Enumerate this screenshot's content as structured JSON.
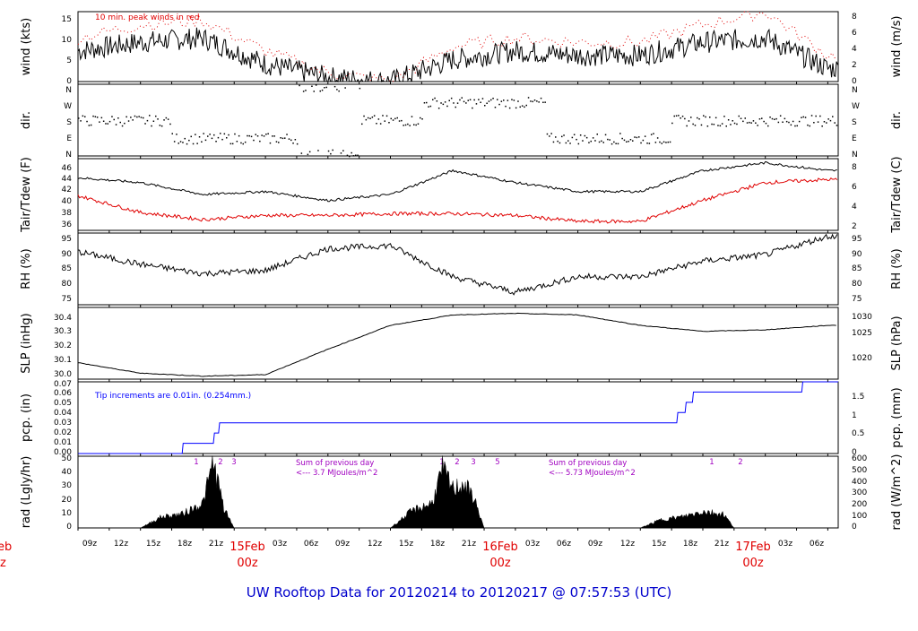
{
  "colors": {
    "axis": "#000000",
    "red": "#e00000",
    "blue": "#0000ff",
    "purple": "#a000c0",
    "title": "#0000cc"
  },
  "panels": [
    {
      "id": "wind",
      "ylabel_left": "wind (kts)",
      "ylabel_right": "wind (m/s)",
      "yticks_left": [
        "0",
        "5",
        "10",
        "15"
      ],
      "yticks_right": [
        "0",
        "2",
        "4",
        "6",
        "8"
      ],
      "annotation": "10 min. peak winds in red"
    },
    {
      "id": "dir",
      "ylabel_left": "dir.",
      "ylabel_right": "dir.",
      "yticks_left": [
        "N",
        "W",
        "S",
        "E",
        "N"
      ],
      "yticks_right": [
        "N",
        "W",
        "S",
        "E",
        "N"
      ]
    },
    {
      "id": "temp",
      "ylabel_left": "Tair/Tdew (F)",
      "ylabel_right": "Tair/Tdew (C)",
      "yticks_left": [
        "36",
        "38",
        "40",
        "42",
        "44",
        "46"
      ],
      "yticks_right": [
        "2",
        "4",
        "6",
        "8"
      ]
    },
    {
      "id": "rh",
      "ylabel_left": "RH (%)",
      "ylabel_right": "RH (%)",
      "yticks_left": [
        "75",
        "80",
        "85",
        "90",
        "95"
      ],
      "yticks_right": [
        "75",
        "80",
        "85",
        "90",
        "95"
      ]
    },
    {
      "id": "slp",
      "ylabel_left": "SLP (inHg)",
      "ylabel_right": "SLP (hPa)",
      "yticks_left": [
        "30.0",
        "30.1",
        "30.2",
        "30.3",
        "30.4"
      ],
      "yticks_right": [
        "1020",
        "1025",
        "1030"
      ]
    },
    {
      "id": "pcp",
      "ylabel_left": "pcp. (in)",
      "ylabel_right": "pcp. (mm)",
      "yticks_left": [
        "0.00",
        "0.01",
        "0.02",
        "0.03",
        "0.04",
        "0.05",
        "0.06",
        "0.07"
      ],
      "yticks_right": [
        "0",
        "0.5",
        "1",
        "1.5"
      ],
      "annotation": "Tip increments are 0.01in. (0.254mm.)"
    },
    {
      "id": "rad",
      "ylabel_left": "rad (Lgly/hr)",
      "ylabel_right": "rad (W/m^2)",
      "yticks_left": [
        "0",
        "10",
        "20",
        "30",
        "40",
        "50"
      ],
      "yticks_right": [
        "0",
        "100",
        "200",
        "300",
        "400",
        "500",
        "600"
      ],
      "notes": [
        {
          "line1": "Sum of previous day",
          "line2": "<--- 3.7 MJoules/m^2"
        },
        {
          "line1": "Sum of previous day",
          "line2": "<--- 5.73 MJoules/m^2"
        }
      ],
      "markers": [
        "1",
        "2",
        "3",
        "1",
        "2",
        "3",
        "5",
        "1",
        "2"
      ]
    }
  ],
  "x_axis": {
    "hour_labels": [
      "09z",
      "12z",
      "15z",
      "18z",
      "21z",
      "03z",
      "06z",
      "09z",
      "12z",
      "15z",
      "18z",
      "21z",
      "03z",
      "06z",
      "09z",
      "12z",
      "15z",
      "18z",
      "21z",
      "03z",
      "06z"
    ],
    "day_labels": [
      {
        "date": "15Feb",
        "hour": "00z"
      },
      {
        "date": "16Feb",
        "hour": "00z"
      },
      {
        "date": "17Feb",
        "hour": "00z"
      }
    ],
    "left_edge_date": "eb",
    "left_edge_hour": "z"
  },
  "title": "UW Rooftop Data for 20120214  to  20120217 @ 07:57:53  (UTC)",
  "chart_data": [
    {
      "type": "line",
      "title": "",
      "ylabel": "wind (kts)",
      "ylim": [
        0,
        16
      ],
      "x_hours_from_09z": [
        0,
        6,
        12,
        18,
        24,
        30,
        36,
        42,
        48,
        54,
        60,
        66,
        72
      ],
      "series": [
        {
          "name": "wind (kts)",
          "values": [
            7,
            9,
            10,
            4,
            1,
            0,
            5,
            7,
            6,
            6,
            9,
            10,
            3
          ]
        },
        {
          "name": "10 min. peak winds",
          "values": [
            10,
            13,
            14,
            7,
            2,
            0,
            8,
            10,
            9,
            9,
            13,
            16,
            6
          ]
        }
      ]
    },
    {
      "type": "scatter",
      "ylabel": "dir.",
      "y_categories": [
        "N",
        "E",
        "S",
        "W",
        "N"
      ],
      "x_hours_from_09z": [
        0,
        6,
        12,
        18,
        24,
        30,
        36,
        42,
        48,
        54,
        60,
        66,
        72
      ],
      "series": [
        {
          "name": "dir.",
          "values": [
            "S",
            "S",
            "E",
            "E",
            "N",
            "S",
            "W",
            "W",
            "E",
            "E",
            "S",
            "S",
            "S"
          ]
        }
      ]
    },
    {
      "type": "line",
      "ylabel": "Tair/Tdew (F)",
      "ylim": [
        35,
        47
      ],
      "x_hours_from_09z": [
        0,
        6,
        12,
        18,
        24,
        30,
        36,
        42,
        48,
        54,
        60,
        66,
        72
      ],
      "series": [
        {
          "name": "Tair",
          "values": [
            43.8,
            43,
            41,
            41.5,
            40,
            41,
            45,
            43,
            41.5,
            41.5,
            45,
            46.3,
            45
          ]
        },
        {
          "name": "Tdew",
          "values": [
            40.8,
            38,
            36.8,
            37.5,
            37.5,
            37.8,
            37.8,
            37.5,
            36.5,
            36.5,
            40,
            43,
            43.5
          ]
        }
      ]
    },
    {
      "type": "line",
      "ylabel": "RH (%)",
      "ylim": [
        73,
        96
      ],
      "x_hours_from_09z": [
        0,
        6,
        12,
        18,
        24,
        30,
        36,
        42,
        48,
        54,
        60,
        66,
        72
      ],
      "series": [
        {
          "name": "RH",
          "values": [
            90,
            86,
            83,
            84,
            91,
            92,
            82,
            77,
            82,
            82,
            87,
            89,
            95
          ]
        }
      ]
    },
    {
      "type": "line",
      "ylabel": "SLP (inHg)",
      "ylim": [
        29.97,
        30.45
      ],
      "x_hours_from_09z": [
        0,
        6,
        12,
        18,
        24,
        30,
        36,
        42,
        48,
        54,
        60,
        66,
        72
      ],
      "series": [
        {
          "name": "SLP",
          "values": [
            30.08,
            30.01,
            29.99,
            30.0,
            30.17,
            30.33,
            30.4,
            30.41,
            30.4,
            30.33,
            30.29,
            30.3,
            30.33
          ]
        }
      ]
    },
    {
      "type": "line",
      "ylabel": "pcp. (in)",
      "ylim": [
        0,
        0.07
      ],
      "x_hours_from_09z": [
        0,
        10,
        10.1,
        13,
        13.1,
        13.5,
        13.6,
        57.5,
        57.6,
        58.3,
        58.4,
        59,
        59.1,
        69.5,
        69.6,
        73
      ],
      "series": [
        {
          "name": "pcp",
          "values": [
            0,
            0,
            0.01,
            0.01,
            0.02,
            0.02,
            0.03,
            0.03,
            0.04,
            0.04,
            0.05,
            0.05,
            0.06,
            0.06,
            0.07,
            0.07
          ]
        }
      ]
    },
    {
      "type": "area",
      "ylabel": "rad (Lgly/hr)",
      "ylim": [
        0,
        52
      ],
      "x_hours_from_09z": [
        6,
        8,
        10,
        12,
        13,
        14,
        15,
        30,
        32,
        34,
        35,
        36,
        37,
        38,
        39,
        54,
        56,
        58,
        60,
        62,
        63
      ],
      "series": [
        {
          "name": "rad",
          "values": [
            0,
            8,
            10,
            18,
            48,
            14,
            0,
            0,
            12,
            18,
            42,
            28,
            32,
            22,
            0,
            0,
            6,
            8,
            12,
            10,
            0
          ]
        }
      ]
    }
  ]
}
